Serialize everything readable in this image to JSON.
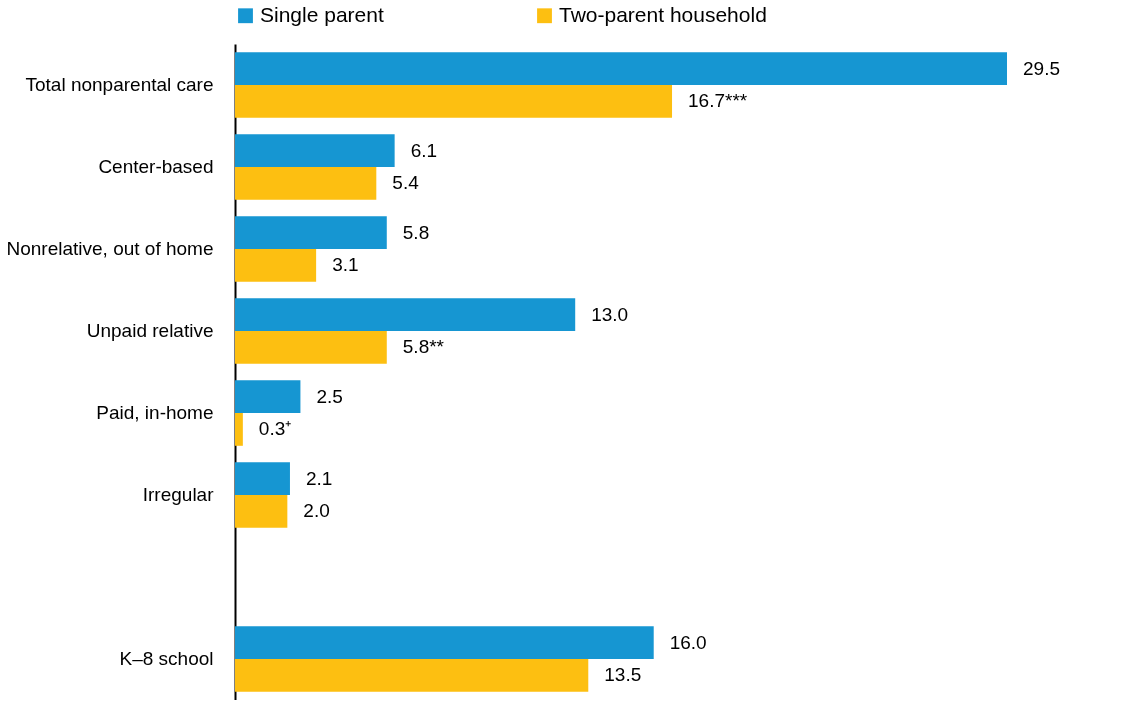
{
  "chart_data": {
    "type": "bar",
    "orientation": "horizontal",
    "categories": [
      "Total nonparental care",
      "Center-based",
      "Nonrelative, out of home",
      "Unpaid relative",
      "Paid, in-home",
      "Irregular",
      null,
      "K–8 school"
    ],
    "series": [
      {
        "name": "Single parent",
        "color": "#1696d2",
        "values": [
          29.5,
          6.1,
          5.8,
          13.0,
          2.5,
          2.1,
          null,
          16.0
        ],
        "value_labels": [
          "29.5",
          "6.1",
          "5.8",
          "13.0",
          "2.5",
          "2.1",
          null,
          "16.0"
        ]
      },
      {
        "name": "Two-parent household",
        "color": "#fdbf11",
        "values": [
          16.7,
          5.4,
          3.1,
          5.8,
          0.3,
          2.0,
          null,
          13.5
        ],
        "value_labels": [
          "16.7***",
          "5.4",
          "3.1",
          "5.8**",
          "0.3⁺",
          "2.0",
          null,
          "13.5"
        ]
      }
    ],
    "legend": "top"
  }
}
